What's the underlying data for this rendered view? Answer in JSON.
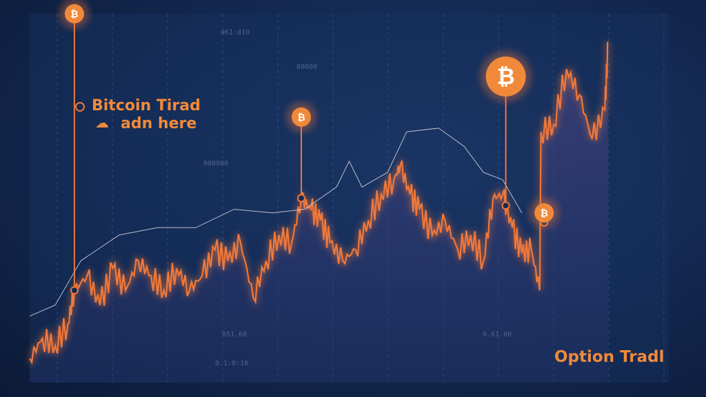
{
  "chart_data": {
    "type": "line",
    "title": "Bitcoin Tirad adn here",
    "title_lines": [
      "Bitcoin Tirad",
      "adn here"
    ],
    "corner_label": "Option Tradl",
    "ylim": [
      0,
      100
    ],
    "grid": "vertical dashed",
    "series": [
      {
        "color": "#f0783a",
        "style": "area",
        "x": [
          0,
          2,
          4,
          6,
          7,
          9,
          11,
          13,
          15,
          17,
          19,
          21,
          23,
          25,
          27,
          29,
          31,
          33,
          35,
          37,
          39,
          41,
          42.5,
          44,
          45.5,
          47,
          49,
          51,
          53,
          55,
          57,
          58,
          59.5,
          61,
          63,
          65,
          67,
          69,
          71,
          72.5,
          74,
          75.5,
          77,
          78.5,
          79.8,
          80,
          82,
          84,
          86,
          88,
          90,
          90.5
        ],
        "y": [
          6.5,
          12,
          10,
          16,
          25,
          29,
          21,
          31,
          25,
          33,
          29,
          25,
          31,
          25,
          29,
          36,
          33,
          38,
          23,
          33,
          40,
          38,
          50,
          47,
          44,
          38,
          33,
          36,
          44,
          51,
          55,
          59,
          51,
          47,
          40,
          44,
          36,
          40,
          33,
          50,
          51,
          42,
          35,
          36,
          25,
          68,
          70,
          85,
          78,
          66,
          74,
          92
        ]
      },
      {
        "color": "#e8e0e8",
        "style": "thin",
        "x": [
          0,
          4,
          8,
          14,
          20,
          26,
          32,
          38,
          43,
          48,
          50,
          52,
          56,
          59,
          64,
          68,
          71,
          74,
          77
        ],
        "y": [
          18,
          21,
          33,
          40,
          42,
          42,
          47,
          46,
          47,
          53,
          60,
          53,
          57,
          68,
          69,
          64,
          57,
          55,
          46
        ]
      }
    ],
    "markers": [
      {
        "icon": "bitcoin-icon",
        "glyph": "₿",
        "x": 7,
        "top": 100
      },
      {
        "icon": "bitcoin-icon",
        "glyph": "₿",
        "x": 42.5,
        "top": 72
      },
      {
        "icon": "bitcoin-icon",
        "glyph": "₿",
        "x": 74.5,
        "top": 83
      },
      {
        "icon": "bitcoin-icon",
        "glyph": "₿",
        "x": 80.5,
        "top": 46
      }
    ],
    "background_labels": [
      "061:010",
      "0.1:0:10",
      "051.60",
      "0.61.00",
      "00000",
      "000000"
    ]
  },
  "colors": {
    "accent": "#f0783a",
    "background": "#142b55"
  }
}
